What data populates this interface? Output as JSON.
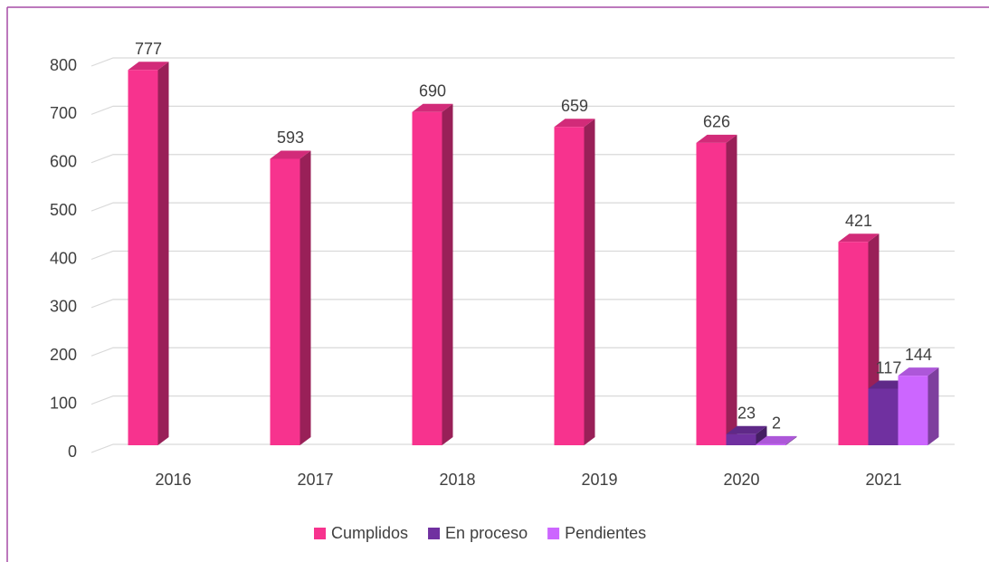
{
  "chart_data": {
    "type": "bar3d",
    "categories": [
      "2016",
      "2017",
      "2018",
      "2019",
      "2020",
      "2021"
    ],
    "series": [
      {
        "name": "Cumplidos",
        "color": "#f7338e",
        "values": [
          777,
          593,
          690,
          659,
          626,
          421
        ]
      },
      {
        "name": "En proceso",
        "color": "#7030a0",
        "values": [
          null,
          null,
          null,
          null,
          23,
          117
        ]
      },
      {
        "name": "Pendientes",
        "color": "#cc66ff",
        "values": [
          null,
          null,
          null,
          null,
          2,
          144
        ]
      }
    ],
    "ylim": [
      0,
      800
    ],
    "yticks": [
      0,
      100,
      200,
      300,
      400,
      500,
      600,
      700,
      800
    ],
    "grid": true,
    "legend": "bottom"
  }
}
